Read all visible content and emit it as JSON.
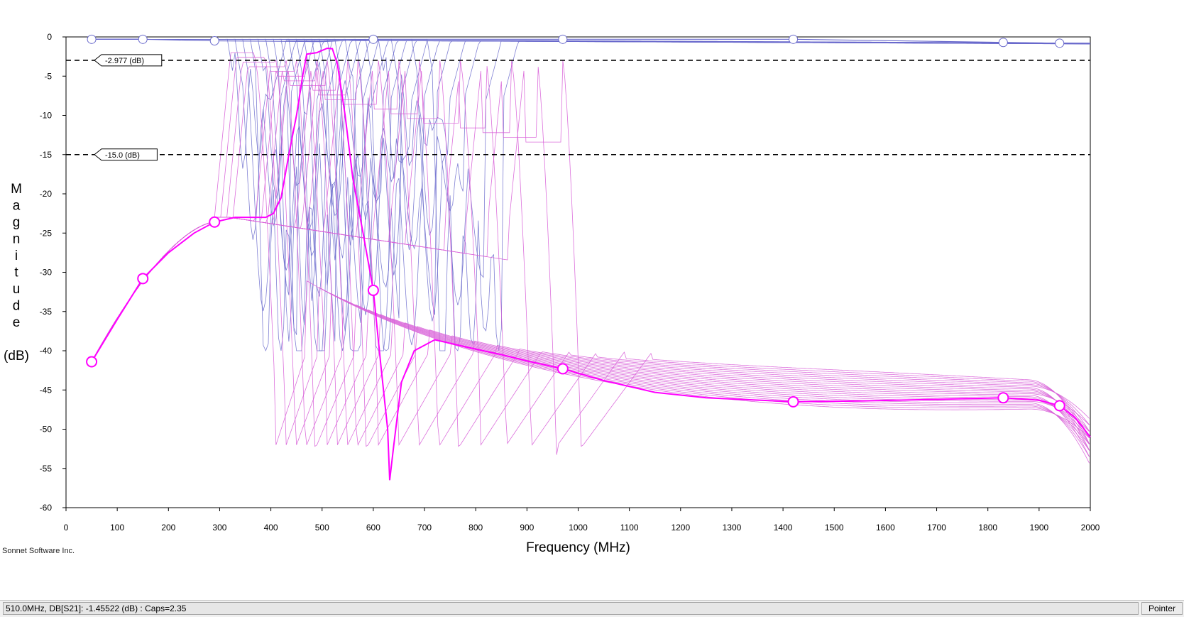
{
  "chart_data": {
    "type": "line",
    "xlabel": "Frequency (MHz)",
    "ylabel_letters": [
      "M",
      "a",
      "g",
      "n",
      "i",
      "t",
      "u",
      "d",
      "e"
    ],
    "ylabel_unit": "(dB)",
    "xlim": [
      0,
      2000
    ],
    "ylim": [
      -60,
      0
    ],
    "xticks": [
      0,
      100,
      200,
      300,
      400,
      500,
      600,
      700,
      800,
      900,
      1000,
      1100,
      1200,
      1300,
      1400,
      1500,
      1600,
      1700,
      1800,
      1900,
      2000
    ],
    "yticks": [
      0,
      -5,
      -10,
      -15,
      -20,
      -25,
      -30,
      -35,
      -40,
      -45,
      -50,
      -55,
      -60
    ],
    "grid": false,
    "reference_lines": [
      {
        "y": -2.977,
        "label": "-2.977  (dB)"
      },
      {
        "y": -15.0,
        "label": "-15.0  (dB)"
      }
    ],
    "colors": {
      "s21_highlight": "#ff00ff",
      "s21_family": "#d860d8",
      "s11_family": "#6a6acc"
    },
    "series": [
      {
        "curve": "S21 selected",
        "points": [
          [
            50,
            -41.4
          ],
          [
            100,
            -36
          ],
          [
            150,
            -30.8
          ],
          [
            200,
            -27.5
          ],
          [
            250,
            -25
          ],
          [
            290,
            -23.6
          ],
          [
            330,
            -23
          ],
          [
            360,
            -23
          ],
          [
            390,
            -23
          ],
          [
            405,
            -22.5
          ],
          [
            420,
            -20.5
          ],
          [
            435,
            -15
          ],
          [
            450,
            -10
          ],
          [
            462,
            -5
          ],
          [
            470,
            -2.2
          ],
          [
            490,
            -2.0
          ],
          [
            510,
            -1.45
          ],
          [
            520,
            -1.5
          ],
          [
            530,
            -3.5
          ],
          [
            545,
            -10
          ],
          [
            560,
            -18
          ],
          [
            580,
            -25
          ],
          [
            600,
            -32.3
          ],
          [
            615,
            -42
          ],
          [
            628,
            -50
          ],
          [
            632,
            -56.5
          ],
          [
            640,
            -52
          ],
          [
            655,
            -44
          ],
          [
            680,
            -40
          ],
          [
            720,
            -38.6
          ],
          [
            780,
            -39.5
          ],
          [
            850,
            -40.5
          ],
          [
            900,
            -41.3
          ],
          [
            970,
            -42.3
          ],
          [
            1050,
            -43.8
          ],
          [
            1150,
            -45.3
          ],
          [
            1250,
            -46
          ],
          [
            1420,
            -46.5
          ],
          [
            1550,
            -46.4
          ],
          [
            1700,
            -46.2
          ],
          [
            1830,
            -46
          ],
          [
            1900,
            -46.3
          ],
          [
            1940,
            -47
          ],
          [
            1970,
            -48.5
          ],
          [
            2000,
            -51
          ]
        ]
      },
      {
        "curve": "S11 selected",
        "points": [
          [
            50,
            -0.3
          ],
          [
            150,
            -0.3
          ],
          [
            290,
            -0.5
          ],
          [
            500,
            -0.6
          ],
          [
            600,
            -0.3
          ],
          [
            970,
            -0.3
          ],
          [
            1420,
            -0.3
          ],
          [
            1830,
            -0.7
          ],
          [
            1940,
            -0.8
          ],
          [
            2000,
            -0.9
          ]
        ]
      }
    ],
    "sweep_family_s21_notch_freqs": [
      410,
      430,
      450,
      470,
      490,
      510,
      530,
      550,
      570,
      590,
      610,
      650,
      690,
      730,
      770,
      810,
      860,
      910,
      960,
      1010
    ],
    "sweep_family_s11_edges": [
      330,
      345,
      360,
      375,
      390,
      405,
      420,
      435,
      450,
      465,
      480,
      495,
      510,
      525,
      540,
      560,
      580,
      600,
      625,
      650,
      690,
      720
    ],
    "markers_mhz": [
      50,
      150,
      290,
      600,
      970,
      1420,
      1830,
      1940
    ]
  },
  "credit": "Sonnet Software Inc.",
  "status": {
    "readout": "510.0MHz, DB[S21]: -1.45522  (dB) : Caps=2.35",
    "mode": "Pointer"
  }
}
